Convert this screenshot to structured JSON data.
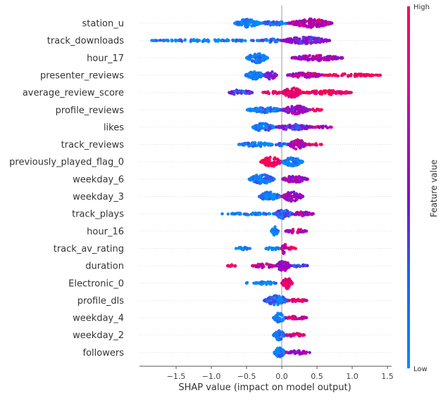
{
  "chart_data": {
    "type": "scatter",
    "subtype": "shap-beeswarm",
    "title": "",
    "xlabel": "SHAP value (impact on model output)",
    "ylabel": "",
    "xlim": [
      -2.0,
      1.57
    ],
    "xticks": [
      -1.5,
      -1.0,
      -0.5,
      0.0,
      0.5,
      1.0,
      1.5
    ],
    "xtick_labels": [
      "−1.5",
      "−1.0",
      "−0.5",
      "0.0",
      "0.5",
      "1.0",
      "1.5"
    ],
    "grid": "horizontal dotted per feature",
    "colorbar": {
      "label": "Feature value",
      "high": "High",
      "low": "Low",
      "colors": [
        "#008bfb",
        "#8f00d6",
        "#ff0052"
      ],
      "placement": "right"
    },
    "features": [
      {
        "name": "station_u",
        "clusters": [
          {
            "x": [
              -0.67,
              -0.3
            ],
            "c": 0.0,
            "w": 6
          },
          {
            "x": [
              -0.3,
              0.1
            ],
            "c": 0.1,
            "w": 3
          },
          {
            "x": [
              0.1,
              0.72
            ],
            "c": 0.7,
            "w": 6
          }
        ]
      },
      {
        "name": "track_downloads",
        "clusters": [
          {
            "x": [
              -1.85,
              -0.3
            ],
            "c": 0.0,
            "w": 1.5
          },
          {
            "x": [
              -0.3,
              0.0
            ],
            "c": 0.1,
            "w": 2.5
          },
          {
            "x": [
              0.0,
              0.68
            ],
            "c": 0.45,
            "w": 5
          }
        ]
      },
      {
        "name": "hour_17",
        "clusters": [
          {
            "x": [
              -0.5,
              -0.2
            ],
            "c": 0.0,
            "w": 7
          },
          {
            "x": [
              0.14,
              0.88
            ],
            "c": 0.6,
            "w": 4
          }
        ]
      },
      {
        "name": "presenter_reviews",
        "clusters": [
          {
            "x": [
              -0.52,
              -0.25
            ],
            "c": 0.05,
            "w": 6
          },
          {
            "x": [
              -0.25,
              -0.07
            ],
            "c": 0.5,
            "w": 6
          },
          {
            "x": [
              0.07,
              0.6
            ],
            "c": 0.65,
            "w": 3.5
          },
          {
            "x": [
              0.6,
              1.4
            ],
            "c": 1.0,
            "w": 2
          }
        ]
      },
      {
        "name": "average_review_score",
        "clusters": [
          {
            "x": [
              -0.75,
              -0.42
            ],
            "c": 0.3,
            "w": 4
          },
          {
            "x": [
              -0.27,
              0.0
            ],
            "c": 1.0,
            "w": 2
          },
          {
            "x": [
              0.0,
              0.3
            ],
            "c": 1.0,
            "w": 7
          },
          {
            "x": [
              0.3,
              1.0
            ],
            "c": 1.0,
            "w": 3
          }
        ]
      },
      {
        "name": "profile_reviews",
        "clusters": [
          {
            "x": [
              -0.5,
              0.0
            ],
            "c": 0.05,
            "w": 4
          },
          {
            "x": [
              0.0,
              0.4
            ],
            "c": 0.55,
            "w": 6
          },
          {
            "x": [
              0.4,
              0.57
            ],
            "c": 1.0,
            "w": 1.5
          }
        ]
      },
      {
        "name": "likes",
        "clusters": [
          {
            "x": [
              -0.42,
              -0.1
            ],
            "c": 0.1,
            "w": 6
          },
          {
            "x": [
              -0.1,
              0.45
            ],
            "c": 0.35,
            "w": 4
          },
          {
            "x": [
              0.45,
              0.72
            ],
            "c": 0.7,
            "w": 1.5
          }
        ]
      },
      {
        "name": "track_reviews",
        "clusters": [
          {
            "x": [
              -0.62,
              -0.1
            ],
            "c": 0.0,
            "w": 3
          },
          {
            "x": [
              -0.1,
              0.1
            ],
            "c": 0.05,
            "w": 2
          },
          {
            "x": [
              0.1,
              0.35
            ],
            "c": 0.6,
            "w": 7
          },
          {
            "x": [
              0.35,
              0.57
            ],
            "c": 1.0,
            "w": 1.5
          }
        ]
      },
      {
        "name": "previously_played_flag_0",
        "clusters": [
          {
            "x": [
              -0.3,
              0.0
            ],
            "c": 1.0,
            "w": 7
          },
          {
            "x": [
              0.0,
              0.3
            ],
            "c": 0.0,
            "w": 6
          }
        ]
      },
      {
        "name": "weekday_6",
        "clusters": [
          {
            "x": [
              -0.47,
              -0.1
            ],
            "c": 0.0,
            "w": 7
          },
          {
            "x": [
              0.0,
              0.37
            ],
            "c": 0.6,
            "w": 5
          }
        ]
      },
      {
        "name": "weekday_3",
        "clusters": [
          {
            "x": [
              -0.32,
              -0.02
            ],
            "c": 0.0,
            "w": 7
          },
          {
            "x": [
              0.0,
              0.3
            ],
            "c": 0.6,
            "w": 7
          }
        ]
      },
      {
        "name": "track_plays",
        "clusters": [
          {
            "x": [
              -0.85,
              -0.1
            ],
            "c": 0.0,
            "w": 1.5
          },
          {
            "x": [
              -0.1,
              0.15
            ],
            "c": 0.15,
            "w": 7
          },
          {
            "x": [
              0.15,
              0.45
            ],
            "c": 0.6,
            "w": 3
          }
        ]
      },
      {
        "name": "hour_16",
        "clusters": [
          {
            "x": [
              -0.15,
              -0.05
            ],
            "c": 0.0,
            "w": 7
          },
          {
            "x": [
              0.05,
              0.35
            ],
            "c": 0.65,
            "w": 3
          }
        ]
      },
      {
        "name": "track_av_rating",
        "clusters": [
          {
            "x": [
              -0.65,
              -0.45
            ],
            "c": 0.0,
            "w": 2
          },
          {
            "x": [
              -0.25,
              -0.02
            ],
            "c": 0.0,
            "w": 2
          },
          {
            "x": [
              0.0,
              0.07
            ],
            "c": 0.7,
            "w": 8
          },
          {
            "x": [
              0.07,
              0.2
            ],
            "c": 1.0,
            "w": 2
          }
        ]
      },
      {
        "name": "duration",
        "clusters": [
          {
            "x": [
              -0.77,
              -0.65
            ],
            "c": 1.0,
            "w": 2
          },
          {
            "x": [
              -0.42,
              -0.08
            ],
            "c": 0.7,
            "w": 3
          },
          {
            "x": [
              -0.08,
              0.12
            ],
            "c": 0.55,
            "w": 8
          },
          {
            "x": [
              0.12,
              0.38
            ],
            "c": 0.2,
            "w": 2
          }
        ]
      },
      {
        "name": "Electronic_0",
        "clusters": [
          {
            "x": [
              -0.5,
              -0.48
            ],
            "c": 0.0,
            "w": 1.5
          },
          {
            "x": [
              -0.4,
              -0.08
            ],
            "c": 0.0,
            "w": 2
          },
          {
            "x": [
              0.0,
              0.15
            ],
            "c": 1.0,
            "w": 8
          }
        ]
      },
      {
        "name": "profile_dls",
        "clusters": [
          {
            "x": [
              -0.25,
              0.1
            ],
            "c": 0.1,
            "w": 7
          },
          {
            "x": [
              0.1,
              0.36
            ],
            "c": 0.8,
            "w": 2.5
          }
        ]
      },
      {
        "name": "weekday_4",
        "clusters": [
          {
            "x": [
              -0.12,
              0.05
            ],
            "c": 0.0,
            "w": 7
          },
          {
            "x": [
              0.05,
              0.36
            ],
            "c": 0.8,
            "w": 2.5
          }
        ]
      },
      {
        "name": "weekday_2",
        "clusters": [
          {
            "x": [
              -0.12,
              0.05
            ],
            "c": 0.0,
            "w": 7
          },
          {
            "x": [
              0.05,
              0.34
            ],
            "c": 0.75,
            "w": 2.5
          }
        ]
      },
      {
        "name": "followers",
        "clusters": [
          {
            "x": [
              -0.11,
              0.05
            ],
            "c": 0.0,
            "w": 7
          },
          {
            "x": [
              0.05,
              0.4
            ],
            "c": 0.6,
            "w": 2.5
          }
        ]
      }
    ]
  }
}
